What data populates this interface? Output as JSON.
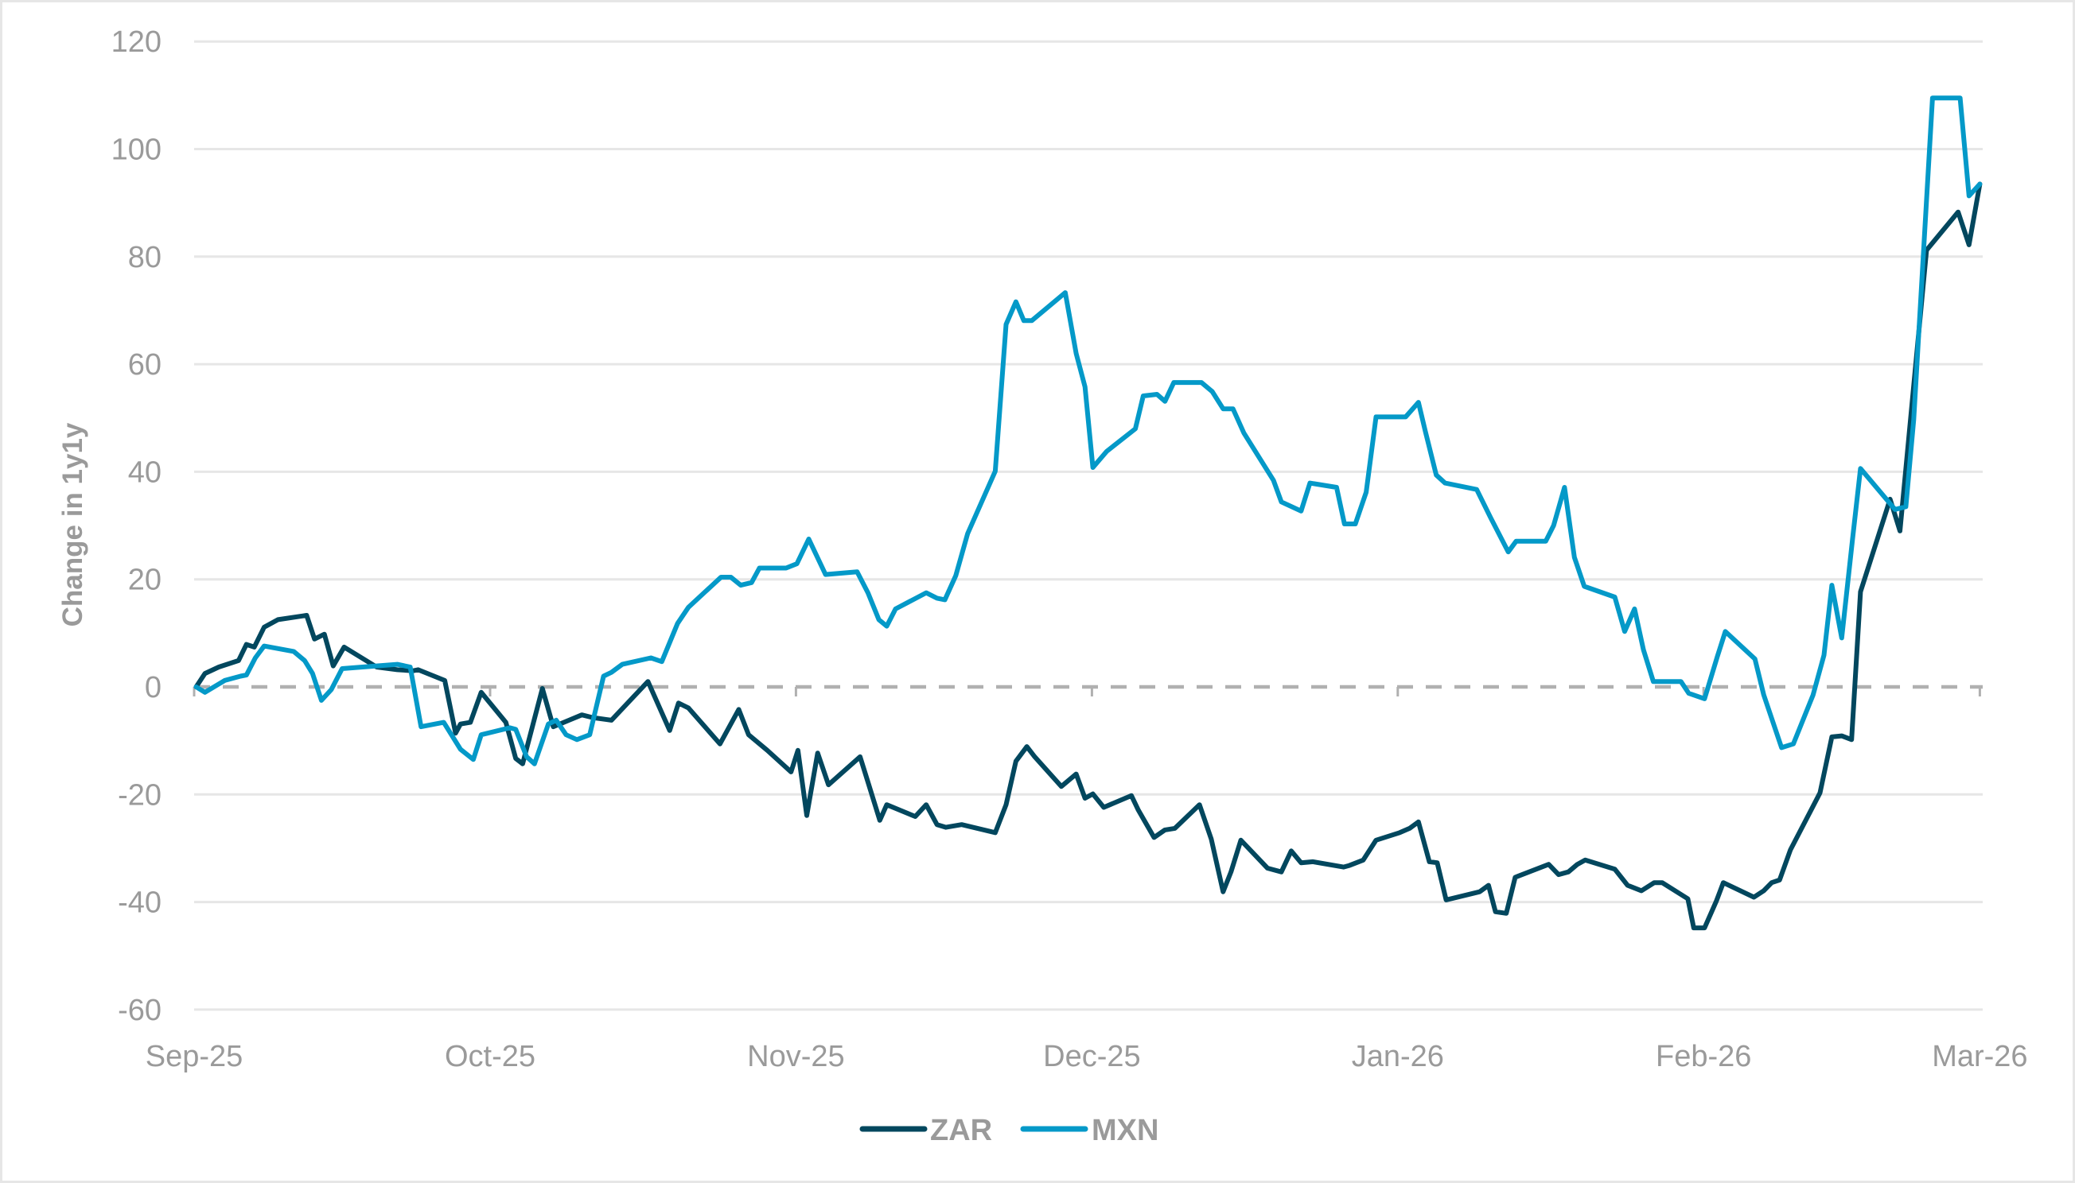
{
  "chart_data": {
    "type": "line",
    "title": "",
    "xlabel": "",
    "ylabel": "Change in 1y1y",
    "ylim": [
      -60,
      120
    ],
    "yticks": [
      "120",
      "100",
      "80",
      "60",
      "40",
      "20",
      "0",
      "-20",
      "-40",
      "-60"
    ],
    "ytick_values": [
      120,
      100,
      80,
      60,
      40,
      20,
      0,
      -20,
      -40,
      -60
    ],
    "xticks": [
      "Sep-25",
      "Oct-25",
      "Nov-25",
      "Dec-25",
      "Jan-26",
      "Feb-26",
      "Mar-26"
    ],
    "xtick_days": [
      0,
      30,
      61,
      91,
      122,
      153,
      181
    ],
    "x_unit": "days since 1-Sep-2025",
    "grid": "horizontal",
    "zero_line": "dashed",
    "legend_position": "bottom",
    "series": [
      {
        "name": "ZAR",
        "color": "#02475e",
        "points": [
          [
            0.2,
            0
          ],
          [
            1.1,
            2.5
          ],
          [
            2.5,
            3.7
          ],
          [
            4.5,
            4.9
          ],
          [
            5.3,
            7.9
          ],
          [
            6.1,
            7.4
          ],
          [
            7.1,
            11.1
          ],
          [
            8.5,
            12.5
          ],
          [
            11.4,
            13.3
          ],
          [
            12.2,
            8.9
          ],
          [
            13.2,
            9.8
          ],
          [
            14.1,
            3.9
          ],
          [
            15.2,
            7.4
          ],
          [
            18.5,
            3.7
          ],
          [
            20.6,
            3.2
          ],
          [
            22.2,
            3.0
          ],
          [
            22.7,
            3.2
          ],
          [
            25.4,
            1.2
          ],
          [
            26.5,
            -8.6
          ],
          [
            27.0,
            -6.9
          ],
          [
            28.0,
            -6.6
          ],
          [
            29.1,
            -1.0
          ],
          [
            31.6,
            -6.6
          ],
          [
            32.6,
            -13.3
          ],
          [
            33.3,
            -14.3
          ],
          [
            35.3,
            -0.3
          ],
          [
            36.4,
            -7.4
          ],
          [
            38.0,
            -6.2
          ],
          [
            39.3,
            -5.2
          ],
          [
            40.4,
            -5.7
          ],
          [
            42.3,
            -6.2
          ],
          [
            46.0,
            1.0
          ],
          [
            48.2,
            -8.1
          ],
          [
            49.1,
            -3.0
          ],
          [
            50.1,
            -3.9
          ],
          [
            53.3,
            -10.6
          ],
          [
            55.2,
            -4.2
          ],
          [
            56.2,
            -8.9
          ],
          [
            58.1,
            -11.8
          ],
          [
            60.5,
            -15.8
          ],
          [
            61.2,
            -11.8
          ],
          [
            62.1,
            -23.9
          ],
          [
            63.2,
            -12.3
          ],
          [
            64.3,
            -18.2
          ],
          [
            67.5,
            -13.0
          ],
          [
            68.3,
            -17.7
          ],
          [
            69.5,
            -24.8
          ],
          [
            70.2,
            -21.9
          ],
          [
            73.1,
            -24.1
          ],
          [
            74.2,
            -21.9
          ],
          [
            75.3,
            -25.6
          ],
          [
            76.2,
            -26.1
          ],
          [
            77.8,
            -25.6
          ],
          [
            81.2,
            -27.1
          ],
          [
            82.3,
            -21.9
          ],
          [
            83.3,
            -13.8
          ],
          [
            84.4,
            -11.1
          ],
          [
            85.2,
            -13.0
          ],
          [
            87.9,
            -18.5
          ],
          [
            89.4,
            -16.2
          ],
          [
            90.3,
            -20.7
          ],
          [
            91.1,
            -19.9
          ],
          [
            92.2,
            -22.4
          ],
          [
            95.0,
            -20.2
          ],
          [
            95.7,
            -22.9
          ],
          [
            97.3,
            -28.0
          ],
          [
            98.4,
            -26.6
          ],
          [
            99.4,
            -26.3
          ],
          [
            101.9,
            -21.9
          ],
          [
            103.1,
            -28.3
          ],
          [
            104.3,
            -38.1
          ],
          [
            105.1,
            -34.4
          ],
          [
            106.1,
            -28.5
          ],
          [
            108.8,
            -33.7
          ],
          [
            110.2,
            -34.4
          ],
          [
            111.2,
            -30.5
          ],
          [
            112.2,
            -32.7
          ],
          [
            113.4,
            -32.5
          ],
          [
            116.5,
            -33.5
          ],
          [
            117.1,
            -33.2
          ],
          [
            118.5,
            -32.2
          ],
          [
            119.8,
            -28.5
          ],
          [
            122.2,
            -27.1
          ],
          [
            123.2,
            -26.3
          ],
          [
            124.1,
            -25.1
          ],
          [
            125.2,
            -32.5
          ],
          [
            126.0,
            -32.7
          ],
          [
            126.9,
            -39.6
          ],
          [
            130.3,
            -38.1
          ],
          [
            131.2,
            -36.9
          ],
          [
            131.9,
            -41.8
          ],
          [
            133.0,
            -42.1
          ],
          [
            133.9,
            -35.4
          ],
          [
            137.3,
            -33.0
          ],
          [
            138.3,
            -34.9
          ],
          [
            139.3,
            -34.4
          ],
          [
            140.2,
            -33.0
          ],
          [
            141.0,
            -32.2
          ],
          [
            144.0,
            -33.9
          ],
          [
            145.3,
            -36.9
          ],
          [
            146.7,
            -37.9
          ],
          [
            148.0,
            -36.4
          ],
          [
            148.8,
            -36.4
          ],
          [
            151.4,
            -39.4
          ],
          [
            152.0,
            -44.8
          ],
          [
            153.1,
            -44.8
          ],
          [
            154.3,
            -39.8
          ],
          [
            155.0,
            -36.4
          ],
          [
            158.1,
            -39.1
          ],
          [
            159.1,
            -37.9
          ],
          [
            159.9,
            -36.4
          ],
          [
            160.7,
            -35.9
          ],
          [
            161.8,
            -30.3
          ],
          [
            164.8,
            -19.7
          ],
          [
            166.0,
            -9.3
          ],
          [
            167.0,
            -9.1
          ],
          [
            168.0,
            -9.8
          ],
          [
            168.9,
            17.7
          ],
          [
            171.9,
            34.9
          ],
          [
            172.9,
            29.0
          ],
          [
            175.6,
            81.2
          ],
          [
            178.8,
            88.3
          ],
          [
            179.9,
            82.2
          ],
          [
            181.0,
            93.5
          ]
        ]
      },
      {
        "name": "MXN",
        "color": "#0499c8",
        "points": [
          [
            0.2,
            0
          ],
          [
            1.1,
            -1.0
          ],
          [
            3.1,
            1.2
          ],
          [
            4.7,
            2.0
          ],
          [
            5.3,
            2.2
          ],
          [
            6.2,
            5.4
          ],
          [
            7.1,
            7.6
          ],
          [
            10.1,
            6.6
          ],
          [
            11.2,
            4.9
          ],
          [
            12.0,
            2.5
          ],
          [
            12.9,
            -2.5
          ],
          [
            13.9,
            -0.5
          ],
          [
            15.0,
            3.4
          ],
          [
            18.5,
            3.9
          ],
          [
            20.6,
            4.2
          ],
          [
            21.9,
            3.7
          ],
          [
            23.0,
            -7.4
          ],
          [
            25.3,
            -6.6
          ],
          [
            27.0,
            -11.6
          ],
          [
            28.3,
            -13.5
          ],
          [
            29.1,
            -8.9
          ],
          [
            32.0,
            -7.6
          ],
          [
            32.6,
            -7.9
          ],
          [
            33.7,
            -13.0
          ],
          [
            34.5,
            -14.3
          ],
          [
            35.9,
            -6.9
          ],
          [
            36.7,
            -6.2
          ],
          [
            37.7,
            -8.9
          ],
          [
            38.8,
            -9.8
          ],
          [
            40.1,
            -8.9
          ],
          [
            41.5,
            2.0
          ],
          [
            42.3,
            2.7
          ],
          [
            43.4,
            4.2
          ],
          [
            46.3,
            5.4
          ],
          [
            47.4,
            4.7
          ],
          [
            49.0,
            11.8
          ],
          [
            50.1,
            14.8
          ],
          [
            53.4,
            20.4
          ],
          [
            54.4,
            20.4
          ],
          [
            55.4,
            18.9
          ],
          [
            56.5,
            19.4
          ],
          [
            57.3,
            22.1
          ],
          [
            60.0,
            22.1
          ],
          [
            61.1,
            22.9
          ],
          [
            62.3,
            27.5
          ],
          [
            64.0,
            20.9
          ],
          [
            67.2,
            21.4
          ],
          [
            68.3,
            17.5
          ],
          [
            69.4,
            12.5
          ],
          [
            70.2,
            11.3
          ],
          [
            71.1,
            14.5
          ],
          [
            74.2,
            17.5
          ],
          [
            75.3,
            16.5
          ],
          [
            76.1,
            16.2
          ],
          [
            77.2,
            20.7
          ],
          [
            78.4,
            28.5
          ],
          [
            81.2,
            40.1
          ],
          [
            82.3,
            67.4
          ],
          [
            83.3,
            71.6
          ],
          [
            84.1,
            68.1
          ],
          [
            84.9,
            68.1
          ],
          [
            88.3,
            73.3
          ],
          [
            89.4,
            62.0
          ],
          [
            90.3,
            55.8
          ],
          [
            91.1,
            40.8
          ],
          [
            92.5,
            43.8
          ],
          [
            95.4,
            48.0
          ],
          [
            96.2,
            54.1
          ],
          [
            97.6,
            54.4
          ],
          [
            98.4,
            53.1
          ],
          [
            99.3,
            56.6
          ],
          [
            102.1,
            56.6
          ],
          [
            103.2,
            54.9
          ],
          [
            104.3,
            51.7
          ],
          [
            105.3,
            51.7
          ],
          [
            106.4,
            47.2
          ],
          [
            109.4,
            38.4
          ],
          [
            110.2,
            34.4
          ],
          [
            112.2,
            32.7
          ],
          [
            113.1,
            37.9
          ],
          [
            115.8,
            37.1
          ],
          [
            116.6,
            30.3
          ],
          [
            117.7,
            30.3
          ],
          [
            118.8,
            36.2
          ],
          [
            119.8,
            50.2
          ],
          [
            122.8,
            50.2
          ],
          [
            124.1,
            52.9
          ],
          [
            124.8,
            47.5
          ],
          [
            125.9,
            39.4
          ],
          [
            126.8,
            37.9
          ],
          [
            130.0,
            36.7
          ],
          [
            131.4,
            31.5
          ],
          [
            133.2,
            25.1
          ],
          [
            134.0,
            27.1
          ],
          [
            137.0,
            27.1
          ],
          [
            137.8,
            30.0
          ],
          [
            138.9,
            37.1
          ],
          [
            139.9,
            24.1
          ],
          [
            140.9,
            18.7
          ],
          [
            144.0,
            16.7
          ],
          [
            145.0,
            10.3
          ],
          [
            146.0,
            14.5
          ],
          [
            146.9,
            6.9
          ],
          [
            147.9,
            1.0
          ],
          [
            150.7,
            1.0
          ],
          [
            151.5,
            -1.2
          ],
          [
            153.1,
            -2.2
          ],
          [
            154.4,
            5.7
          ],
          [
            155.2,
            10.3
          ],
          [
            158.2,
            5.2
          ],
          [
            159.1,
            -1.5
          ],
          [
            160.9,
            -11.3
          ],
          [
            162.1,
            -10.6
          ],
          [
            164.1,
            -1.5
          ],
          [
            165.2,
            5.9
          ],
          [
            166.0,
            18.9
          ],
          [
            167.0,
            9.1
          ],
          [
            168.1,
            27.5
          ],
          [
            168.9,
            40.6
          ],
          [
            172.4,
            33.0
          ],
          [
            173.5,
            33.5
          ],
          [
            174.3,
            49.7
          ],
          [
            176.2,
            109.5
          ],
          [
            179.0,
            109.5
          ],
          [
            179.9,
            91.3
          ],
          [
            181.0,
            93.5
          ]
        ]
      }
    ]
  },
  "legend": {
    "items": [
      {
        "label": "ZAR",
        "color": "#02475e"
      },
      {
        "label": "MXN",
        "color": "#0499c8"
      }
    ]
  },
  "axis": {
    "y_title": "Change in 1y1y"
  },
  "colors": {
    "grid": "#e6e6e6",
    "zero_line": "#b0b0b0",
    "text": "#9a9a9a",
    "frame": "#e6e6e6"
  }
}
